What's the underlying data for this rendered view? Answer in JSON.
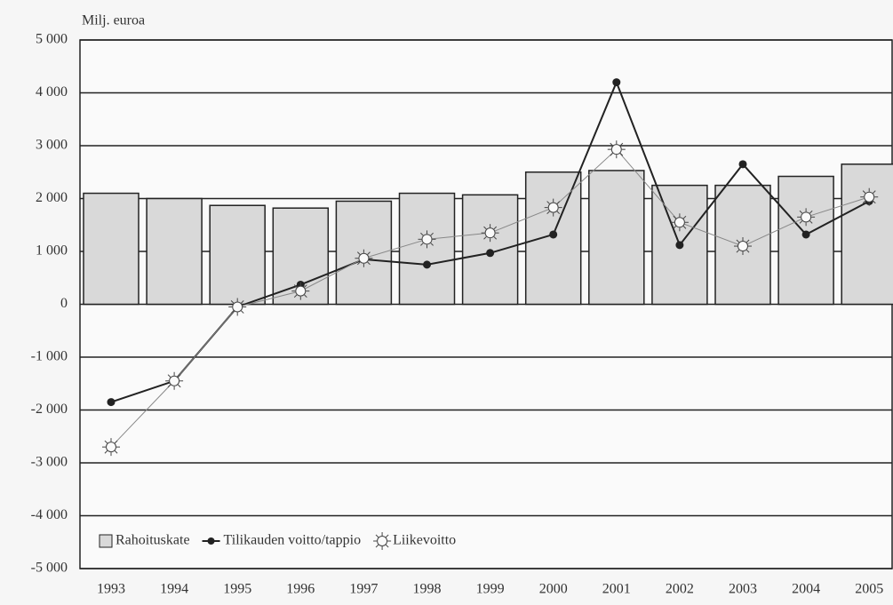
{
  "chart_data": {
    "type": "bar_line",
    "ylabel": "Milj. euroa",
    "categories": [
      "1993",
      "1994",
      "1995",
      "1996",
      "1997",
      "1998",
      "1999",
      "2000",
      "2001",
      "2002",
      "2003",
      "2004",
      "2005"
    ],
    "series": [
      {
        "name": "Rahoituskate",
        "type": "bar",
        "color": "#d9d9d9",
        "values": [
          2100,
          2000,
          1870,
          1820,
          1950,
          2100,
          2070,
          2500,
          2530,
          2250,
          2250,
          2420,
          2650
        ]
      },
      {
        "name": "Tilikauden voitto/tappio",
        "type": "line",
        "marker": "dot",
        "color": "#222222",
        "values": [
          -1850,
          -1450,
          -50,
          370,
          850,
          750,
          970,
          1320,
          4200,
          1120,
          2650,
          1320,
          1950
        ]
      },
      {
        "name": "Liikevoitto",
        "type": "line",
        "marker": "sun",
        "color": "#888888",
        "values": [
          -2700,
          -1450,
          -50,
          250,
          870,
          1230,
          1350,
          1830,
          2930,
          1550,
          1100,
          1650,
          2030
        ]
      }
    ],
    "ylim": [
      -5000,
      5000
    ],
    "yticks": [
      {
        "value": -5000,
        "label": "-5 000"
      },
      {
        "value": -4000,
        "label": "-4 000"
      },
      {
        "value": -3000,
        "label": "-3 000"
      },
      {
        "value": -2000,
        "label": "-2 000"
      },
      {
        "value": -1000,
        "label": "-1 000"
      },
      0,
      {
        "value": 1000,
        "label": "1 000"
      },
      {
        "value": 2000,
        "label": "2 000"
      },
      {
        "value": 3000,
        "label": "3 000"
      },
      {
        "value": 4000,
        "label": "4 000"
      },
      {
        "value": 5000,
        "label": "5 000"
      }
    ],
    "grid": true,
    "legend": "lower left"
  }
}
